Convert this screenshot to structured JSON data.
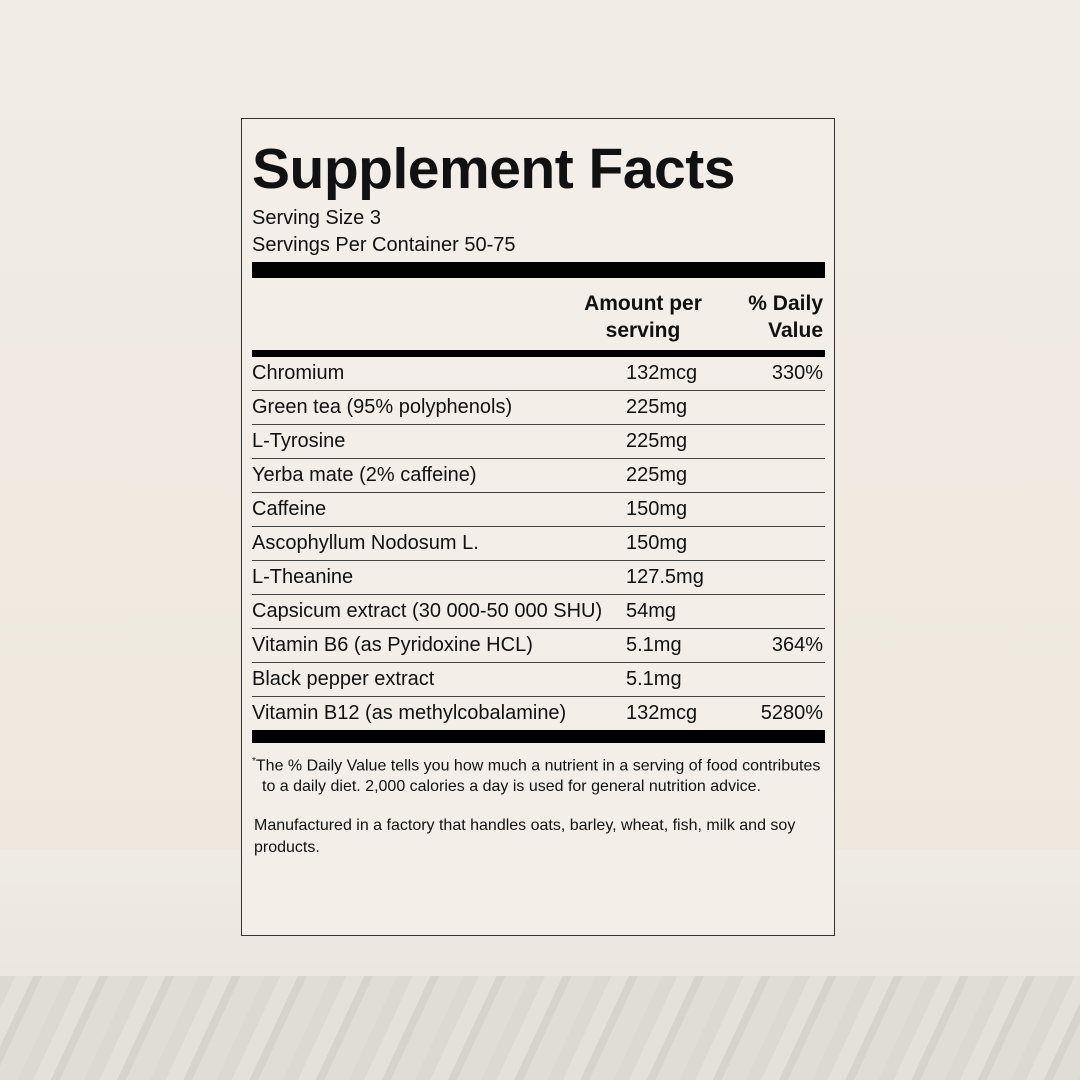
{
  "title": "Supplement Facts",
  "serving_size": "Serving Size 3",
  "servings_per_container": "Servings Per Container 50-75",
  "header": {
    "amount": "Amount per serving",
    "daily_value": "% Daily Value"
  },
  "rows": [
    {
      "name": "Chromium",
      "amount": "132mcg",
      "dv": "330%"
    },
    {
      "name": "Green tea (95% polyphenols)",
      "amount": "225mg",
      "dv": ""
    },
    {
      "name": "L-Tyrosine",
      "amount": "225mg",
      "dv": ""
    },
    {
      "name": "Yerba mate (2% caffeine)",
      "amount": "225mg",
      "dv": ""
    },
    {
      "name": "Caffeine",
      "amount": "150mg",
      "dv": ""
    },
    {
      "name": "Ascophyllum Nodosum L.",
      "amount": "150mg",
      "dv": ""
    },
    {
      "name": "L-Theanine",
      "amount": "127.5mg",
      "dv": ""
    },
    {
      "name": "Capsicum extract (30 000-50 000 SHU)",
      "amount": "54mg",
      "dv": ""
    },
    {
      "name": "Vitamin B6 (as Pyridoxine HCL)",
      "amount": "5.1mg",
      "dv": "364%"
    },
    {
      "name": "Black pepper extract",
      "amount": "5.1mg",
      "dv": ""
    },
    {
      "name": "Vitamin B12 (as methylcobalamine)",
      "amount": "132mcg",
      "dv": "5280%"
    }
  ],
  "footnote_mark": "*",
  "footnote": "The % Daily Value tells you how much a nutrient in a serving of food contributes to a daily diet. 2,000 calories a day is used for general nutrition advice.",
  "manufacturing": "Manufactured in a factory that handles oats, barley, wheat, fish, milk and soy products."
}
